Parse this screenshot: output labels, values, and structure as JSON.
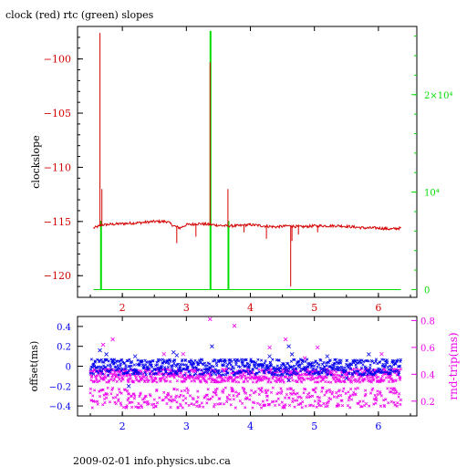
{
  "title": "clock (red) rtc (green) slopes",
  "footer": "2009-02-01 info.physics.ubc.ca",
  "colors": {
    "red": "#d40000",
    "green": "#00dd00",
    "blue": "#0000ee",
    "magenta": "#ee00ee",
    "frame": "#000000"
  },
  "chart_data": [
    {
      "type": "line",
      "title": "clock (red) rtc (green) slopes",
      "xlim": [
        1.3,
        6.6
      ],
      "x_ticks": [
        "2",
        "3",
        "4",
        "5",
        "6"
      ],
      "ylabel_left": "clockslope",
      "ylim_left": [
        -122,
        -97
      ],
      "y_ticks_left": [
        "-100",
        "-105",
        "-110",
        "-115",
        "-120"
      ],
      "y_ticks_right": [
        "2×10⁴",
        "10⁴",
        "0"
      ],
      "ylim_right": [
        -800,
        27000
      ],
      "grid": false,
      "series": [
        {
          "name": "clock",
          "axis": "left",
          "color": "red",
          "baseline_x": [
            1.55,
            1.7,
            2.0,
            2.3,
            2.5,
            2.6,
            2.7,
            2.8,
            2.9,
            3.0,
            3.2,
            3.4,
            3.6,
            3.8,
            4.0,
            4.2,
            4.4,
            4.6,
            4.8,
            5.0,
            5.2,
            5.4,
            5.6,
            5.8,
            6.0,
            6.2,
            6.35
          ],
          "baseline_y": [
            -115.6,
            -115.3,
            -115.2,
            -115.1,
            -115.0,
            -115.0,
            -115.0,
            -115.4,
            -115.6,
            -115.3,
            -115.2,
            -115.3,
            -115.4,
            -115.4,
            -115.3,
            -115.4,
            -115.5,
            -115.4,
            -115.5,
            -115.4,
            -115.4,
            -115.4,
            -115.5,
            -115.6,
            -115.6,
            -115.7,
            -115.6
          ],
          "spikes": [
            {
              "x": 1.65,
              "y": -97.6
            },
            {
              "x": 1.68,
              "y": -112.0
            },
            {
              "x": 3.37,
              "y": -100.3
            },
            {
              "x": 3.65,
              "y": -112.0
            },
            {
              "x": 4.63,
              "y": -121.0
            },
            {
              "x": 2.85,
              "y": -117.0
            },
            {
              "x": 3.15,
              "y": -116.4
            },
            {
              "x": 4.25,
              "y": -116.6
            },
            {
              "x": 4.65,
              "y": -116.8
            },
            {
              "x": 4.75,
              "y": -116.2
            },
            {
              "x": 5.05,
              "y": -116.0
            },
            {
              "x": 3.9,
              "y": -116.0
            }
          ]
        },
        {
          "name": "rtc",
          "axis": "right",
          "color": "green",
          "baseline": 0,
          "spikes": [
            {
              "x": 1.66,
              "y": 7000
            },
            {
              "x": 3.37,
              "y": 26500
            },
            {
              "x": 3.65,
              "y": 7000
            }
          ],
          "x_end": 6.35
        }
      ]
    },
    {
      "type": "scatter",
      "xlim": [
        1.3,
        6.6
      ],
      "x_ticks": [
        "2",
        "3",
        "4",
        "5",
        "6"
      ],
      "ylabel_left": "offset(ms)",
      "ylim_left": [
        -0.5,
        0.5
      ],
      "y_ticks_left": [
        "0.4",
        "0.2",
        "0",
        "-0.2",
        "-0.4"
      ],
      "ylabel_right": "rnd-trip(ms)",
      "ylim_right": [
        0.09,
        0.83
      ],
      "y_ticks_right": [
        "0.8",
        "0.6",
        "0.4",
        "0.2"
      ],
      "grid": false,
      "series": [
        {
          "name": "offset",
          "axis": "left",
          "color": "blue",
          "band": [
            -0.09,
            0.07
          ],
          "x_range": [
            1.5,
            6.35
          ],
          "outliers": [
            {
              "x": 1.65,
              "y": 0.16
            },
            {
              "x": 1.75,
              "y": 0.12
            },
            {
              "x": 2.2,
              "y": 0.1
            },
            {
              "x": 2.8,
              "y": 0.14
            },
            {
              "x": 2.85,
              "y": 0.11
            },
            {
              "x": 3.4,
              "y": 0.2
            },
            {
              "x": 4.3,
              "y": 0.1
            },
            {
              "x": 4.6,
              "y": 0.2
            },
            {
              "x": 4.65,
              "y": 0.12
            },
            {
              "x": 5.2,
              "y": 0.1
            },
            {
              "x": 5.85,
              "y": 0.12
            },
            {
              "x": 2.1,
              "y": -0.2
            },
            {
              "x": 4.6,
              "y": -0.14
            },
            {
              "x": 5.5,
              "y": -0.12
            }
          ]
        },
        {
          "name": "rnd-trip",
          "axis": "right",
          "color": "magenta",
          "band": [
            0.34,
            0.44
          ],
          "lower_band": [
            0.15,
            0.3
          ],
          "x_range": [
            1.5,
            6.35
          ],
          "outliers": [
            {
              "x": 1.7,
              "y": 0.62
            },
            {
              "x": 1.85,
              "y": 0.66
            },
            {
              "x": 2.65,
              "y": 0.55
            },
            {
              "x": 3.37,
              "y": 0.81
            },
            {
              "x": 3.75,
              "y": 0.76
            },
            {
              "x": 4.3,
              "y": 0.6
            },
            {
              "x": 4.55,
              "y": 0.66
            },
            {
              "x": 5.05,
              "y": 0.6
            },
            {
              "x": 6.05,
              "y": 0.55
            },
            {
              "x": 2.95,
              "y": 0.55
            },
            {
              "x": 4.85,
              "y": 0.52
            }
          ]
        }
      ]
    }
  ]
}
